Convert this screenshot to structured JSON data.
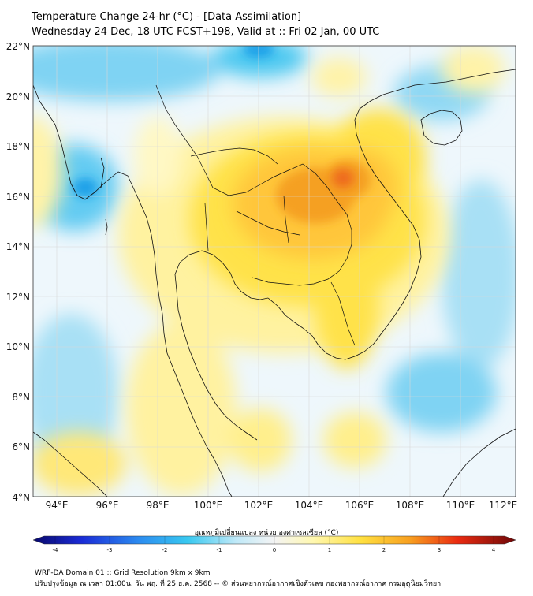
{
  "header": {
    "title_line1": "Temperature Change 24-hr (°C) - [Data Assimilation]",
    "title_line2": "Wednesday 24 Dec, 18 UTC FCST+198, Valid at :: Fri 02 Jan, 00 UTC"
  },
  "map": {
    "lat_ticks": [
      "22°N",
      "20°N",
      "18°N",
      "16°N",
      "14°N",
      "12°N",
      "10°N",
      "8°N",
      "6°N",
      "4°N"
    ],
    "lon_ticks": [
      "94°E",
      "96°E",
      "98°E",
      "100°E",
      "102°E",
      "104°E",
      "106°E",
      "108°E",
      "110°E",
      "112°E"
    ],
    "colors": {
      "cold_strong": "#1aa0e8",
      "cold": "#4cc8f0",
      "cool": "#bfe6f6",
      "neutral": "#f2f2f2",
      "warm_light": "#fff6a8",
      "warm": "#ffe24a",
      "warmer": "#ffc63a",
      "hot": "#f5a020",
      "hottest": "#ee6a1a",
      "border": "#111111",
      "grid": "#cfcfcf"
    }
  },
  "colorbar": {
    "title": "อุณหภูมิเปลี่ยนแปลง หน่วย องศาเซลเซียส (°C)",
    "ticks": [
      "-4",
      "-3",
      "-2",
      "-1",
      "0",
      "1",
      "2",
      "3",
      "4"
    ]
  },
  "footer": {
    "line1": "WRF-DA Domain 01 :: Grid Resolution 9km x 9km",
    "line2": "ปรับปรุงข้อมูล ณ เวลา 01:00น. วัน พฤ. ที่ 25 ธ.ค. 2568 -- © ส่วนพยากรณ์อากาศเชิงตัวเลข กองพยากรณ์อากาศ กรมอุตุนิยมวิทยา"
  }
}
